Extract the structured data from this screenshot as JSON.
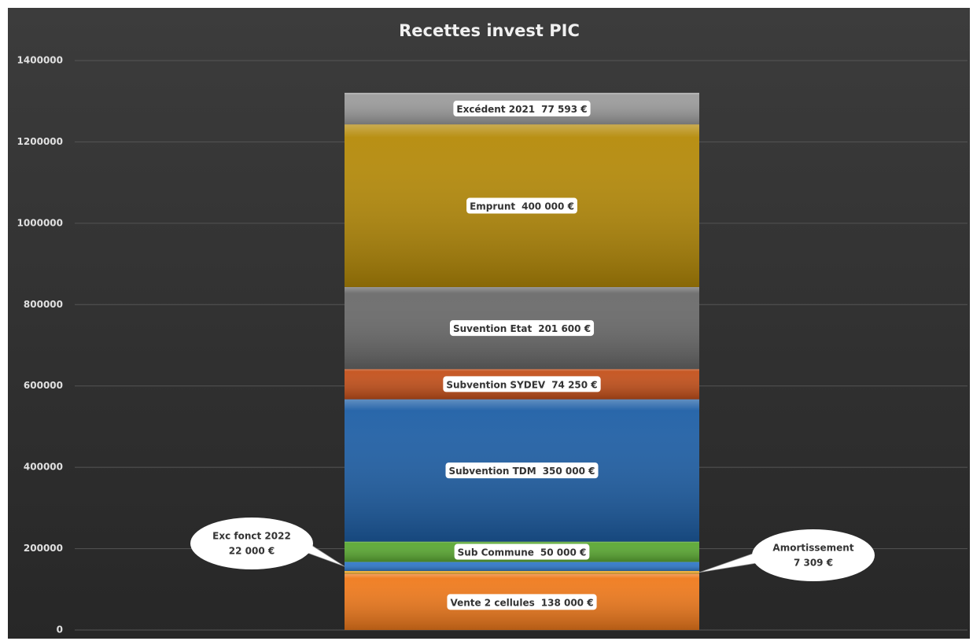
{
  "chart_data": {
    "type": "stacked_bar",
    "title": "Recettes invest PIC",
    "ylim": [
      0,
      1400000
    ],
    "yticks": [
      0,
      200000,
      400000,
      600000,
      800000,
      1000000,
      1200000,
      1400000
    ],
    "grid": true,
    "series": [
      {
        "name": "Vente 2 cellules",
        "color": "#f07a1c",
        "values": [
          138000
        ],
        "value_labels": [
          "138 000 €"
        ]
      },
      {
        "name": "Amortissement",
        "color": "#f2b035",
        "values": [
          7309
        ],
        "value_labels": [
          "7 309 €"
        ]
      },
      {
        "name": "Exc fonct 2022",
        "color": "#2f78c8",
        "values": [
          22000
        ],
        "value_labels": [
          "22 000 €"
        ]
      },
      {
        "name": "Sub Commune",
        "color": "#5aa832",
        "values": [
          50000
        ],
        "value_labels": [
          "50 000 €"
        ]
      },
      {
        "name": "Subvention TDM",
        "color": "#1e5fa6",
        "values": [
          350000
        ],
        "value_labels": [
          "350 000 €"
        ]
      },
      {
        "name": "Subvention SYDEV",
        "color": "#c4501a",
        "values": [
          74250
        ],
        "value_labels": [
          "74 250 €"
        ]
      },
      {
        "name": "Suvention Etat",
        "color": "#6a6a6a",
        "values": [
          201600
        ],
        "value_labels": [
          "201 600 €"
        ]
      },
      {
        "name": "Emprunt",
        "color": "#b58a08",
        "values": [
          400000
        ],
        "value_labels": [
          "400 000 €"
        ]
      },
      {
        "name": "Excédent 2021",
        "color": "#9c9c9c",
        "values": [
          77593
        ],
        "value_labels": [
          "77 593 €"
        ]
      }
    ]
  }
}
